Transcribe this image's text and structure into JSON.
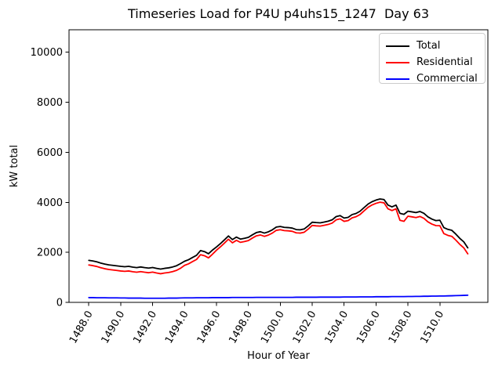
{
  "figure": {
    "title": "Timeseries Load for P4U p4uhs15_1247  Day 63",
    "xlabel": "Hour of Year",
    "ylabel": "kW total"
  },
  "legend": {
    "position": "upper right",
    "entries": [
      {
        "label": "Total",
        "color": "#000000"
      },
      {
        "label": "Residential",
        "color": "#ff0000"
      },
      {
        "label": "Commercial",
        "color": "#0000ff"
      }
    ]
  },
  "chart_data": {
    "type": "line",
    "title": "Timeseries Load for P4U p4uhs15_1247  Day 63",
    "xlabel": "Hour of Year",
    "ylabel": "kW total",
    "grid": false,
    "legend_position": "upper right",
    "xlim": [
      1486.76,
      1513.01
    ],
    "ylim": [
      0,
      10900
    ],
    "xticks": [
      1488,
      1490,
      1492,
      1494,
      1496,
      1498,
      1500,
      1502,
      1504,
      1506,
      1508,
      1510
    ],
    "xtick_labels": [
      "1488.0",
      "1490.0",
      "1492.0",
      "1494.0",
      "1496.0",
      "1498.0",
      "1500.0",
      "1502.0",
      "1504.0",
      "1506.0",
      "1508.0",
      "1510.0"
    ],
    "yticks": [
      0,
      2000,
      4000,
      6000,
      8000,
      10000
    ],
    "ytick_labels": [
      "0",
      "2000",
      "4000",
      "6000",
      "8000",
      "10000"
    ],
    "x": [
      1488.0,
      1488.25,
      1488.5,
      1488.75,
      1489.0,
      1489.25,
      1489.5,
      1489.75,
      1490.0,
      1490.25,
      1490.5,
      1490.75,
      1491.0,
      1491.25,
      1491.5,
      1491.75,
      1492.0,
      1492.25,
      1492.5,
      1492.75,
      1493.0,
      1493.25,
      1493.5,
      1493.75,
      1494.0,
      1494.25,
      1494.5,
      1494.75,
      1495.0,
      1495.25,
      1495.5,
      1495.75,
      1496.0,
      1496.25,
      1496.5,
      1496.75,
      1497.0,
      1497.25,
      1497.5,
      1497.75,
      1498.0,
      1498.25,
      1498.5,
      1498.75,
      1499.0,
      1499.25,
      1499.5,
      1499.75,
      1500.0,
      1500.25,
      1500.5,
      1500.75,
      1501.0,
      1501.25,
      1501.5,
      1501.75,
      1502.0,
      1502.25,
      1502.5,
      1502.75,
      1503.0,
      1503.25,
      1503.5,
      1503.75,
      1504.0,
      1504.25,
      1504.5,
      1504.75,
      1505.0,
      1505.25,
      1505.5,
      1505.75,
      1506.0,
      1506.25,
      1506.5,
      1506.75,
      1507.0,
      1507.25,
      1507.5,
      1507.75,
      1508.0,
      1508.25,
      1508.5,
      1508.75,
      1509.0,
      1509.25,
      1509.5,
      1509.75,
      1510.0,
      1510.25,
      1510.5,
      1510.75,
      1511.0,
      1511.25,
      1511.5,
      1511.75
    ],
    "series": [
      {
        "name": "Total",
        "color": "#000000",
        "values": [
          1680,
          1655,
          1620,
          1570,
          1530,
          1500,
          1480,
          1460,
          1440,
          1425,
          1440,
          1410,
          1390,
          1415,
          1390,
          1370,
          1395,
          1360,
          1330,
          1360,
          1380,
          1415,
          1465,
          1550,
          1645,
          1705,
          1795,
          1880,
          2070,
          2030,
          1945,
          2090,
          2215,
          2350,
          2500,
          2655,
          2510,
          2610,
          2530,
          2560,
          2600,
          2700,
          2790,
          2825,
          2770,
          2820,
          2900,
          3010,
          3035,
          3000,
          2990,
          2970,
          2910,
          2900,
          2935,
          3060,
          3205,
          3190,
          3180,
          3210,
          3245,
          3300,
          3430,
          3470,
          3370,
          3400,
          3510,
          3555,
          3645,
          3790,
          3930,
          4025,
          4090,
          4135,
          4110,
          3890,
          3820,
          3890,
          3560,
          3520,
          3645,
          3620,
          3590,
          3635,
          3560,
          3420,
          3330,
          3270,
          3285,
          2990,
          2920,
          2880,
          2730,
          2560,
          2420,
          2180
        ]
      },
      {
        "name": "Residential",
        "color": "#ff0000",
        "values": [
          1495,
          1470,
          1435,
          1385,
          1345,
          1315,
          1295,
          1275,
          1255,
          1240,
          1255,
          1225,
          1205,
          1230,
          1205,
          1185,
          1210,
          1175,
          1145,
          1175,
          1195,
          1230,
          1280,
          1365,
          1480,
          1540,
          1630,
          1715,
          1905,
          1865,
          1780,
          1925,
          2085,
          2220,
          2370,
          2525,
          2380,
          2480,
          2400,
          2430,
          2470,
          2570,
          2660,
          2695,
          2640,
          2690,
          2770,
          2880,
          2905,
          2870,
          2860,
          2840,
          2780,
          2770,
          2805,
          2930,
          3075,
          3060,
          3050,
          3080,
          3115,
          3170,
          3300,
          3340,
          3240,
          3270,
          3380,
          3425,
          3515,
          3660,
          3800,
          3895,
          3960,
          4005,
          3980,
          3740,
          3670,
          3740,
          3280,
          3240,
          3445,
          3420,
          3390,
          3435,
          3360,
          3220,
          3130,
          3070,
          3065,
          2750,
          2680,
          2640,
          2490,
          2320,
          2180,
          1940
        ]
      },
      {
        "name": "Commercial",
        "color": "#0000ff",
        "values": [
          190,
          190,
          185,
          185,
          185,
          180,
          180,
          180,
          175,
          175,
          170,
          170,
          170,
          170,
          165,
          165,
          165,
          165,
          165,
          165,
          170,
          170,
          170,
          175,
          180,
          180,
          180,
          185,
          185,
          185,
          185,
          190,
          190,
          190,
          190,
          190,
          195,
          195,
          195,
          195,
          195,
          195,
          200,
          200,
          200,
          200,
          200,
          200,
          200,
          200,
          200,
          200,
          205,
          205,
          205,
          205,
          205,
          205,
          210,
          210,
          210,
          210,
          210,
          210,
          215,
          215,
          215,
          215,
          220,
          220,
          220,
          220,
          225,
          225,
          225,
          225,
          230,
          230,
          230,
          230,
          235,
          235,
          240,
          240,
          245,
          245,
          250,
          250,
          255,
          255,
          260,
          265,
          270,
          275,
          280,
          285
        ]
      }
    ]
  }
}
